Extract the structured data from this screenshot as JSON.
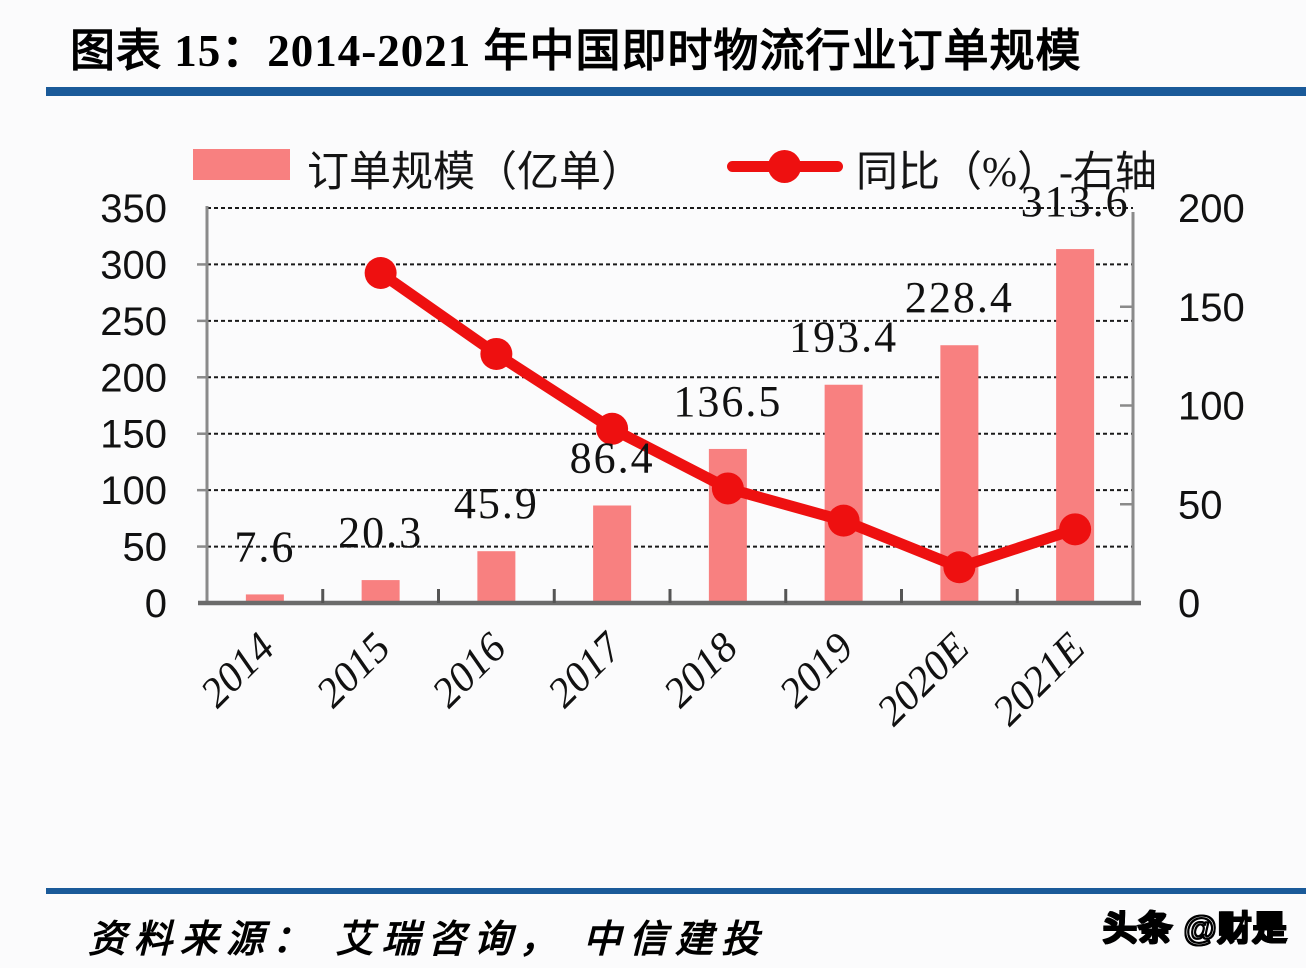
{
  "header": {
    "title": "图表 15：2014-2021 年中国即时物流行业订单规模"
  },
  "footer": {
    "source": "资料来源： 艾瑞咨询， 中信建投",
    "watermark": "头条 @财是"
  },
  "colors": {
    "divider_blue": "#1A5A99",
    "bar_fill": "#F88080",
    "line_red": "#EE1010",
    "grid": "#1A1A1A",
    "axis_border": "#8A8A8A",
    "text": "#111111",
    "background": "#FBFBFC"
  },
  "chart_data": {
    "type": "bar+line",
    "title": "2014-2021 年中国即时物流行业订单规模",
    "categories": [
      "2014",
      "2015",
      "2016",
      "2017",
      "2018",
      "2019",
      "2020E",
      "2021E"
    ],
    "series": [
      {
        "name": "订单规模（亿单）",
        "kind": "bar",
        "axis": "left",
        "values": [
          7.6,
          20.3,
          45.9,
          86.4,
          136.5,
          193.4,
          228.4,
          313.6
        ],
        "data_labels": [
          "7.6",
          "20.3",
          "45.9",
          "86.4",
          "136.5",
          "193.4",
          "228.4",
          "313.6"
        ]
      },
      {
        "name": "同比（%）-右轴",
        "kind": "line",
        "axis": "right",
        "values": [
          null,
          167.1,
          126.1,
          88.2,
          58.0,
          41.7,
          18.1,
          37.3
        ]
      }
    ],
    "left_axis": {
      "min": 0,
      "max": 350,
      "step": 50,
      "tick_labels": [
        "0",
        "50",
        "100",
        "150",
        "200",
        "250",
        "300",
        "350"
      ]
    },
    "right_axis": {
      "min": 0,
      "max": 200,
      "step": 50,
      "tick_labels": [
        "0",
        "50",
        "100",
        "150",
        "200"
      ]
    },
    "grid": "dashed-horizontal",
    "legend_position": "top"
  }
}
